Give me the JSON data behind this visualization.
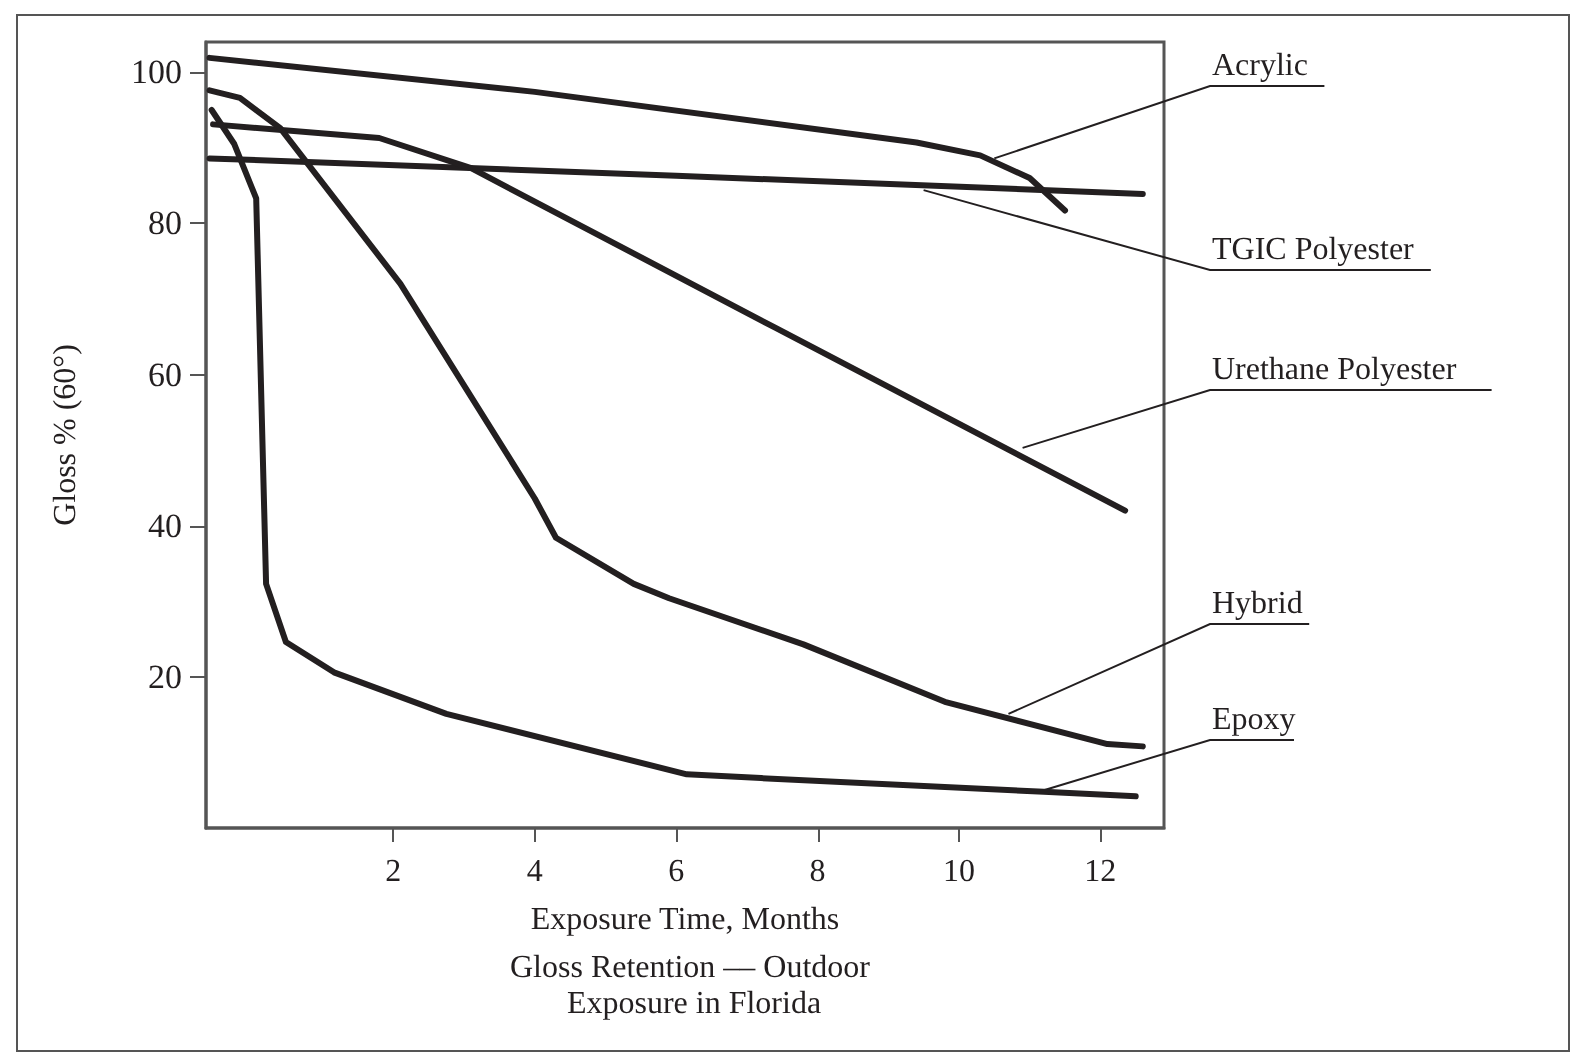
{
  "chart_data": {
    "type": "line",
    "title": "Gloss Retention –– Outdoor Exposure in Florida",
    "xlabel": "Exposure Time, Months",
    "ylabel": "Gloss % (60°)",
    "xlim": [
      -0.65,
      12.9
    ],
    "xticks": [
      2,
      4,
      6,
      8,
      10,
      12
    ],
    "ylim": [
      0,
      104
    ],
    "yticks": [
      20,
      40,
      60,
      80,
      100
    ],
    "marker": "none",
    "line_style": "solid",
    "series": [
      {
        "color": "#231f20",
        "x": [
          -0.6,
          4,
          9.4,
          10.3,
          11,
          11.5
        ],
        "values": [
          101.9,
          97.4,
          90.7,
          89,
          86,
          81.7
        ]
      },
      {
        "color": "#231f20",
        "x": [
          -0.6,
          6,
          12.6
        ],
        "values": [
          88.6,
          86.3,
          83.9
        ]
      },
      {
        "color": "#231f20",
        "x": [
          -0.55,
          1.8,
          3.1,
          7.4,
          12.35
        ],
        "values": [
          93.1,
          91.3,
          87.3,
          66.2,
          42
        ]
      },
      {
        "color": "#231f20",
        "x": [
          -0.6,
          -0.17,
          0.4,
          2.1,
          4,
          4.3,
          5.4,
          5.9,
          7.8,
          9.8,
          12.1,
          12.6
        ],
        "values": [
          97.6,
          96.6,
          92.6,
          72,
          43.6,
          38.4,
          32.3,
          30.4,
          24.3,
          16.7,
          11.1,
          10.8
        ]
      },
      {
        "color": "#231f20",
        "x": [
          -0.57,
          -0.25,
          0.06,
          0.2,
          0.48,
          1.16,
          2.75,
          6.15,
          7.2,
          11.2,
          12.5
        ],
        "values": [
          95,
          90.5,
          83.3,
          32.3,
          24.6,
          20.6,
          15.1,
          7.1,
          6.6,
          4.8,
          4.2
        ]
      }
    ],
    "annotations": [
      {
        "text": "Acrylic",
        "x": 10.5,
        "y": 88.6
      },
      {
        "text": "TGIC Polyester",
        "x": 9.5,
        "y": 84.4
      },
      {
        "text": "Urethane Polyester",
        "x": 10.9,
        "y": 50.3
      },
      {
        "text": "Hybrid",
        "x": 10.7,
        "y": 15.1
      },
      {
        "text": "Epoxy",
        "x": 11.2,
        "y": 5
      }
    ]
  }
}
